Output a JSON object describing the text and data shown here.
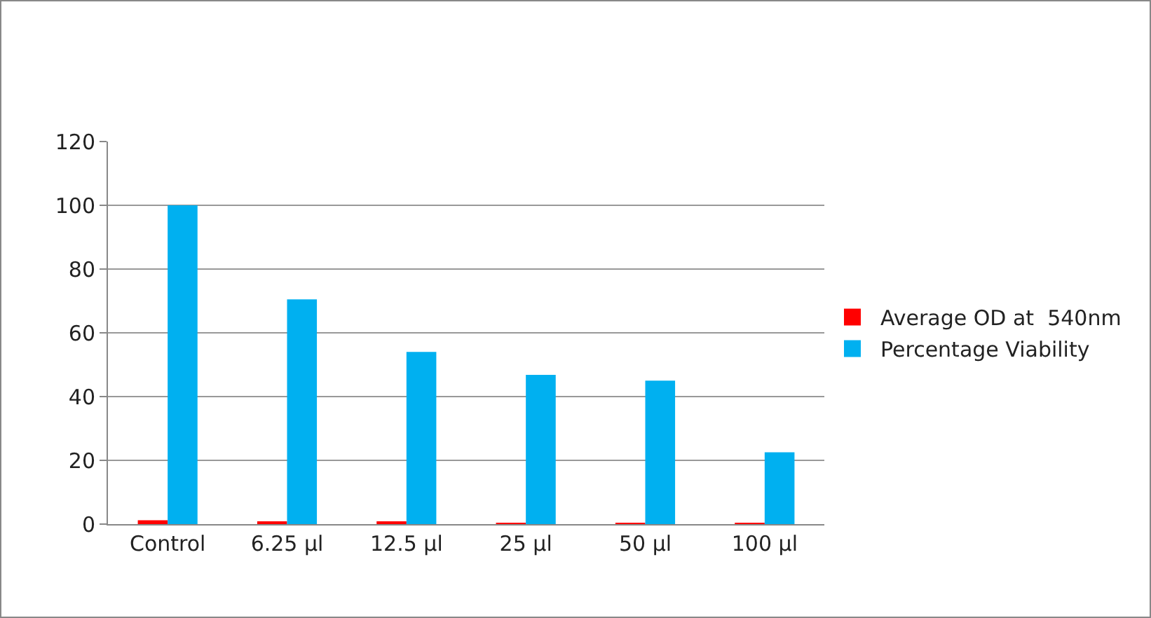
{
  "chart_data": {
    "type": "bar",
    "categories": [
      "Control",
      "6.25 µl",
      "12.5 µl",
      "25 µl",
      "50 µl",
      "100 µl"
    ],
    "series": [
      {
        "name": "Average OD at  540nm",
        "color": "#ff0000",
        "values": [
          1.2,
          0.7,
          0.6,
          0.4,
          0.4,
          0.3
        ]
      },
      {
        "name": "Percentage Viability",
        "color": "#00b0f0",
        "values": [
          100,
          70.5,
          54,
          46.8,
          45,
          22.5
        ]
      }
    ],
    "ylim": [
      0,
      120
    ],
    "yticks": [
      0,
      20,
      40,
      60,
      80,
      100,
      120
    ],
    "grid": "y",
    "legend": "right"
  }
}
